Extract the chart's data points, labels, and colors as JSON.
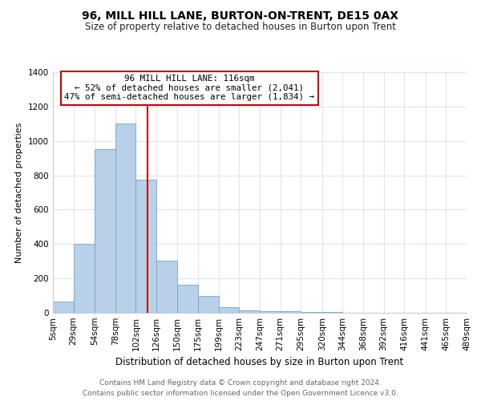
{
  "title": "96, MILL HILL LANE, BURTON-ON-TRENT, DE15 0AX",
  "subtitle": "Size of property relative to detached houses in Burton upon Trent",
  "xlabel": "Distribution of detached houses by size in Burton upon Trent",
  "ylabel": "Number of detached properties",
  "footnote1": "Contains HM Land Registry data © Crown copyright and database right 2024.",
  "footnote2": "Contains public sector information licensed under the Open Government Licence v3.0.",
  "bin_edges": [
    5,
    29,
    54,
    78,
    102,
    126,
    150,
    175,
    199,
    223,
    247,
    271,
    295,
    320,
    344,
    368,
    392,
    416,
    441,
    465,
    489
  ],
  "bin_labels": [
    "5sqm",
    "29sqm",
    "54sqm",
    "78sqm",
    "102sqm",
    "126sqm",
    "150sqm",
    "175sqm",
    "199sqm",
    "223sqm",
    "247sqm",
    "271sqm",
    "295sqm",
    "320sqm",
    "344sqm",
    "368sqm",
    "392sqm",
    "416sqm",
    "441sqm",
    "465sqm",
    "489sqm"
  ],
  "counts": [
    65,
    400,
    950,
    1100,
    775,
    305,
    165,
    100,
    35,
    15,
    10,
    8,
    5,
    3,
    2,
    1,
    0,
    0,
    0,
    0
  ],
  "bar_color": "#b8d0e8",
  "bar_edge_color": "#6fa8d0",
  "property_size": 116,
  "property_line_color": "#cc0000",
  "annotation_title": "96 MILL HILL LANE: 116sqm",
  "annotation_line1": "← 52% of detached houses are smaller (2,041)",
  "annotation_line2": "47% of semi-detached houses are larger (1,834) →",
  "annotation_box_color": "#ffffff",
  "annotation_box_edge": "#cc0000",
  "ylim": [
    0,
    1400
  ],
  "yticks": [
    0,
    200,
    400,
    600,
    800,
    1000,
    1200,
    1400
  ],
  "background_color": "#ffffff",
  "grid_color": "#dce6f0",
  "title_fontsize": 10,
  "subtitle_fontsize": 8.5,
  "tick_fontsize": 7.5,
  "ylabel_fontsize": 8,
  "xlabel_fontsize": 8.5,
  "footnote_fontsize": 6.5
}
